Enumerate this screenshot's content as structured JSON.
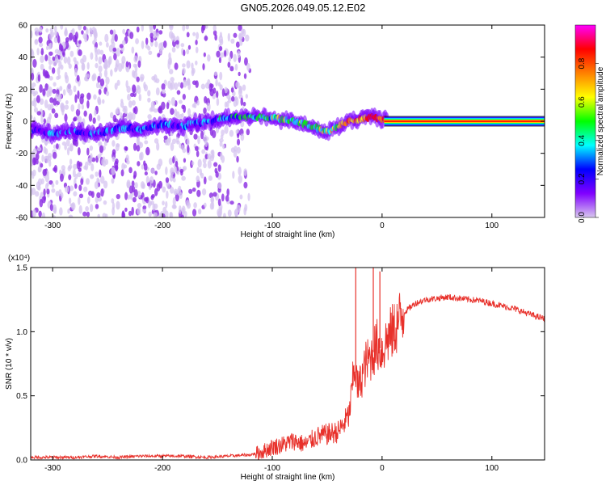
{
  "title": "GN05.2026.049.05.12.E02",
  "chart_data": [
    {
      "type": "heatmap",
      "xlabel": "Height of straight line (km)",
      "ylabel": "Frequency (Hz)",
      "xlim": [
        -320,
        148
      ],
      "ylim": [
        -60,
        60
      ],
      "xticks": [
        -300,
        -200,
        -100,
        0,
        100
      ],
      "yticks": [
        -60,
        -40,
        -20,
        0,
        20,
        40,
        60
      ],
      "colorbar": {
        "label": "Normalized spectral amplitude",
        "range": [
          0,
          1
        ],
        "ticks": [
          "0.0",
          "0.2",
          "0.4",
          "0.6",
          "0.8"
        ],
        "colors": [
          "#d8c8ee",
          "#8000ff",
          "#0000ff",
          "#00ffff",
          "#00ff00",
          "#ffff00",
          "#ff8000",
          "#ff0000",
          "#ff00ff"
        ]
      },
      "ridge": {
        "x": [
          -320,
          -300,
          -280,
          -260,
          -240,
          -220,
          -200,
          -180,
          -160,
          -140,
          -120,
          -100,
          -80,
          -60,
          -50,
          -40,
          -30,
          -20,
          -10,
          0,
          148
        ],
        "frequency": [
          -5,
          -8,
          -6,
          -8,
          -4,
          -5,
          -2,
          -3,
          0,
          2,
          3,
          2,
          0,
          -4,
          -7,
          -3,
          0,
          1,
          3,
          1,
          0
        ],
        "amplitude": [
          0.25,
          0.3,
          0.3,
          0.3,
          0.35,
          0.3,
          0.3,
          0.3,
          0.35,
          0.4,
          0.45,
          0.5,
          0.5,
          0.55,
          0.55,
          0.65,
          0.8,
          0.85,
          0.9,
          0.95,
          0.95
        ]
      },
      "noise_extent_x": [
        -320,
        -120
      ]
    },
    {
      "type": "line",
      "xlabel": "Height of straight line (km)",
      "ylabel": "SNR (10 * v/v)",
      "y_multiplier": "(x10⁴)",
      "xlim": [
        -320,
        148
      ],
      "ylim": [
        0,
        1.5
      ],
      "xticks": [
        -300,
        -200,
        -100,
        0,
        100
      ],
      "yticks": [
        "0.0",
        "0.5",
        "1.0",
        "1.5"
      ],
      "series": [
        {
          "color": "#e8302a",
          "x": [
            -320,
            -300,
            -280,
            -260,
            -240,
            -220,
            -200,
            -180,
            -160,
            -140,
            -120,
            -110,
            -100,
            -90,
            -80,
            -70,
            -60,
            -50,
            -40,
            -35,
            -30,
            -28,
            -25,
            -22,
            -20,
            -15,
            -10,
            -5,
            0,
            5,
            10,
            15,
            20,
            30,
            40,
            50,
            60,
            70,
            80,
            90,
            100,
            110,
            120,
            130,
            140,
            148
          ],
          "y": [
            0.02,
            0.02,
            0.02,
            0.03,
            0.02,
            0.03,
            0.03,
            0.03,
            0.02,
            0.03,
            0.04,
            0.06,
            0.1,
            0.12,
            0.15,
            0.12,
            0.18,
            0.2,
            0.22,
            0.28,
            0.35,
            0.5,
            0.75,
            0.55,
            0.6,
            0.75,
            0.8,
            0.9,
            0.85,
            0.95,
            1.0,
            1.08,
            1.15,
            1.22,
            1.25,
            1.26,
            1.27,
            1.26,
            1.25,
            1.24,
            1.22,
            1.2,
            1.18,
            1.15,
            1.12,
            1.1
          ]
        }
      ],
      "spikes": [
        {
          "x": -24,
          "y": 1.5
        },
        {
          "x": -8,
          "y": 1.5
        },
        {
          "x": -2,
          "y": 1.47
        }
      ]
    }
  ]
}
